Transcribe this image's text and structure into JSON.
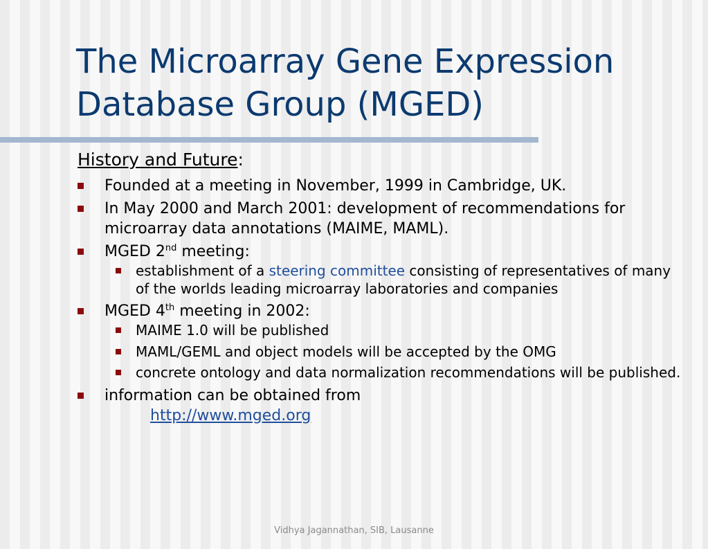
{
  "title_line1": "The Microarray Gene Expression",
  "title_line2": "Database Group (MGED)",
  "heading": {
    "text": "History and Future",
    "suffix": ":"
  },
  "bullets": {
    "b1": "Founded at a meeting in November, 1999 in Cambridge, UK.",
    "b2": "In May 2000 and March 2001: development of recommendations for microarray data annotations (MAIME, MAML).",
    "b3": {
      "pre": "MGED 2",
      "sup": "nd",
      "post": " meeting:"
    },
    "b3_sub1": {
      "pre": "establishment of a ",
      "link": "steering committee",
      "post": " consisting of representatives of many of the worlds leading microarray laboratories and companies"
    },
    "b4": {
      "pre": "MGED 4",
      "sup": "th",
      "post": " meeting in 2002:"
    },
    "b4_sub1": "MAIME 1.0 will be published",
    "b4_sub2": "MAML/GEML and object models will be accepted by the OMG",
    "b4_sub3": "concrete ontology and data normalization recommendations will be published.",
    "b5": "information can be obtained from",
    "b5_url": "http://www.mged.org"
  },
  "footer": "Vidhya Jagannathan, SIB, Lausanne",
  "colors": {
    "title": "#0b3a6f",
    "bullet": "#8b0b0b",
    "link": "#1f4e9b",
    "rule": "#a3b7cf"
  }
}
